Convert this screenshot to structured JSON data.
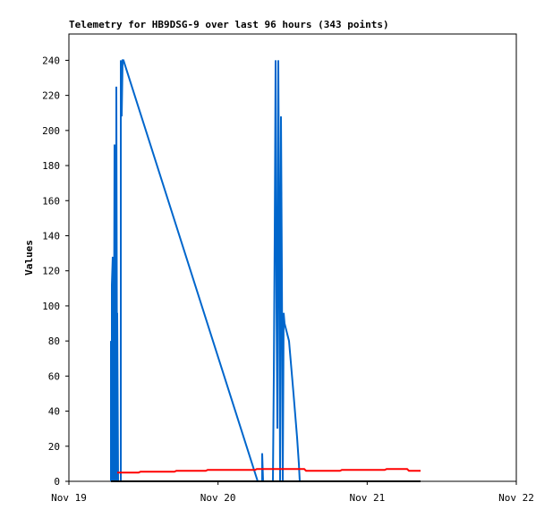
{
  "chart_data": {
    "type": "line",
    "title": "Telemetry for HB9DSG-9 over last 96 hours (343 points)",
    "y_label": "Values",
    "xlim": [
      0,
      3
    ],
    "xticks": [
      {
        "value": 0,
        "label": "Nov 19"
      },
      {
        "value": 1,
        "label": "Nov 20"
      },
      {
        "value": 2,
        "label": "Nov 21"
      },
      {
        "value": 3,
        "label": "Nov 22"
      }
    ],
    "ylim": [
      0,
      255
    ],
    "yticks": [
      0,
      20,
      40,
      60,
      80,
      100,
      120,
      140,
      160,
      180,
      200,
      220,
      240
    ],
    "grid": false,
    "series": [
      {
        "color": "#0066cc",
        "x": [
          0.282,
          0.282,
          0.288,
          0.288,
          0.294,
          0.294,
          0.3,
          0.306,
          0.306,
          0.318,
          0.318,
          0.324,
          0.324,
          0.33,
          0.348,
          0.348,
          0.354,
          0.36,
          0.366,
          1.266,
          1.296,
          1.296,
          1.302,
          1.368,
          1.374,
          1.38,
          1.386,
          1.392,
          1.398,
          1.404,
          1.41,
          1.416,
          1.422,
          1.428,
          1.434,
          1.44,
          1.446,
          1.476,
          1.506,
          1.53,
          1.542,
          1.548
        ],
        "values": [
          0,
          80,
          0,
          112,
          128,
          0,
          0,
          192,
          0,
          0,
          225,
          0,
          96,
          0,
          0,
          240,
          208,
          240,
          240,
          0,
          0,
          16,
          0,
          0,
          60,
          140,
          240,
          100,
          30,
          240,
          150,
          0,
          208,
          120,
          0,
          96,
          90,
          80,
          50,
          25,
          10,
          0
        ]
      },
      {
        "color": "#ff0000",
        "x": [
          0.324,
          0.468,
          0.48,
          0.708,
          0.72,
          0.918,
          0.93,
          1.248,
          1.26,
          1.578,
          1.59,
          1.818,
          1.83,
          2.118,
          2.13,
          2.268,
          2.28,
          2.358
        ],
        "values": [
          5,
          5,
          5.5,
          5.5,
          6,
          6,
          6.5,
          6.5,
          7,
          7,
          6,
          6,
          6.5,
          6.5,
          7,
          7,
          6,
          6
        ]
      },
      {
        "color": "#000000",
        "x": [
          0.282,
          2.358
        ],
        "values": [
          0,
          0
        ]
      }
    ]
  }
}
